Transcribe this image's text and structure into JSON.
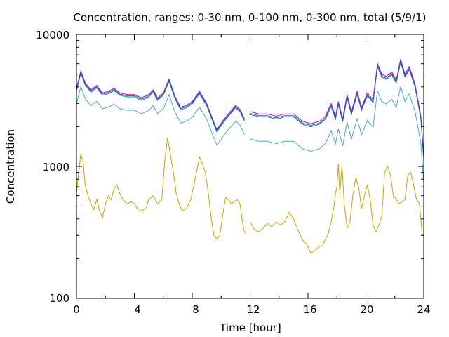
{
  "chart_data": {
    "type": "line",
    "title": "Concentration, ranges: 0-30 nm, 0-100 nm, 0-300 nm, total (5/9/1)",
    "xlabel": "Time [hour]",
    "ylabel": "Concentration",
    "xlim": [
      0,
      24
    ],
    "ylim": [
      100,
      10000
    ],
    "yscale": "log",
    "xticks": [
      "0",
      "4",
      "8",
      "12",
      "16",
      "20",
      "24"
    ],
    "yticks": [
      "100",
      "1000",
      "10000"
    ],
    "grid": false,
    "legend": "none",
    "series": [
      {
        "color": "#d4a000",
        "x": [
          0.0,
          0.15,
          0.3,
          0.45,
          0.6,
          0.8,
          1.0,
          1.2,
          1.4,
          1.6,
          1.8,
          2.0,
          2.2,
          2.4,
          2.6,
          2.8,
          3.0,
          3.2,
          3.5,
          3.8,
          4.0,
          4.2,
          4.5,
          4.8,
          5.0,
          5.3,
          5.6,
          5.9,
          6.1,
          6.3,
          6.5,
          6.7,
          6.9,
          7.1,
          7.3,
          7.6,
          7.9,
          8.2,
          8.5,
          8.7,
          8.9,
          9.1,
          9.3,
          9.5,
          9.7,
          9.9,
          10.1,
          10.3,
          10.5,
          10.7,
          10.9,
          11.1,
          11.3,
          11.5,
          11.6,
          11.7
        ],
        "values": [
          620,
          900,
          1250,
          1100,
          720,
          600,
          520,
          470,
          560,
          460,
          410,
          520,
          600,
          560,
          680,
          720,
          620,
          560,
          520,
          540,
          520,
          480,
          460,
          480,
          560,
          600,
          520,
          560,
          1100,
          1650,
          1200,
          900,
          620,
          520,
          460,
          480,
          560,
          800,
          1180,
          1050,
          900,
          640,
          420,
          300,
          280,
          300,
          420,
          580,
          560,
          520,
          540,
          560,
          520,
          360,
          320,
          310
        ]
      },
      {
        "color": "#d4a000",
        "x": [
          12.0,
          12.3,
          12.6,
          12.9,
          13.2,
          13.5,
          13.8,
          14.1,
          14.4,
          14.7,
          15.0,
          15.3,
          15.6,
          15.9,
          16.2,
          16.5,
          16.8,
          17.0,
          17.2,
          17.4,
          17.6,
          17.8,
          17.9,
          18.0,
          18.1,
          18.2,
          18.35,
          18.5,
          18.7,
          18.9,
          19.1,
          19.3,
          19.5,
          19.7,
          19.9,
          20.1,
          20.3,
          20.5,
          20.7,
          20.9,
          21.1,
          21.3,
          21.5,
          21.7,
          21.9,
          22.1,
          22.3,
          22.5,
          22.7,
          22.9,
          23.1,
          23.3,
          23.5,
          23.7,
          23.9
        ],
        "values": [
          380,
          330,
          320,
          340,
          370,
          350,
          380,
          360,
          380,
          450,
          400,
          330,
          280,
          260,
          220,
          230,
          250,
          250,
          280,
          310,
          380,
          500,
          620,
          700,
          1050,
          620,
          1020,
          520,
          340,
          380,
          600,
          820,
          700,
          480,
          600,
          720,
          560,
          360,
          320,
          360,
          420,
          900,
          1000,
          860,
          600,
          560,
          520,
          540,
          560,
          860,
          900,
          720,
          560,
          520,
          300
        ]
      }
    ]
  }
}
